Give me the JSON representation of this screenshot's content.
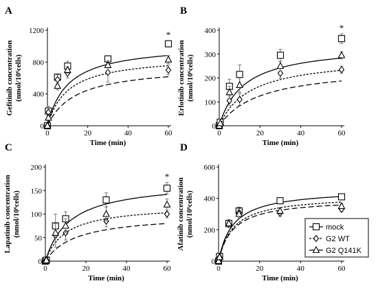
{
  "legend": [
    {
      "label": "mock",
      "marker": "square",
      "dash": "solid"
    },
    {
      "label": "G2 WT",
      "marker": "diamond",
      "dash": "short"
    },
    {
      "label": "G2 Q141K",
      "marker": "triangle",
      "dash": "long"
    }
  ],
  "chart_data": [
    {
      "type": "scatter",
      "panel_label": "A",
      "xlabel": "Time (min)",
      "ylabel": [
        "Gefitinib concentration",
        "(nmol/10⁶cells)"
      ],
      "xlim": [
        0,
        60
      ],
      "ylim": [
        0,
        1200
      ],
      "xticks": [
        0,
        20,
        40,
        60
      ],
      "yticks": [
        0,
        400,
        800,
        1200
      ],
      "x": [
        0,
        0.5,
        5,
        10,
        30,
        60
      ],
      "series": [
        {
          "name": "mock",
          "values": [
            0,
            185,
            610,
            750,
            840,
            1030
          ],
          "err": [
            0,
            60,
            40,
            60,
            40,
            40
          ],
          "fit": [
            1030,
            10
          ]
        },
        {
          "name": "G2 WT",
          "values": [
            0,
            170,
            580,
            660,
            670,
            700
          ],
          "err": [
            0,
            60,
            60,
            60,
            120,
            60
          ],
          "fit": [
            880,
            10
          ]
        },
        {
          "name": "G2 Q141K",
          "values": [
            0,
            100,
            500,
            700,
            760,
            830
          ],
          "err": [
            0,
            30,
            50,
            40,
            60,
            50
          ],
          "fit": [
            760,
            14
          ]
        }
      ],
      "annotations": [
        {
          "text": "*",
          "x": 60,
          "y": 1030
        }
      ]
    },
    {
      "type": "scatter",
      "panel_label": "B",
      "xlabel": "Time (min)",
      "ylabel": [
        "Erlotinib concentration",
        "(nmol/10⁶cells)"
      ],
      "xlim": [
        0,
        60
      ],
      "ylim": [
        0,
        400
      ],
      "xticks": [
        0,
        20,
        40,
        60
      ],
      "yticks": [
        0,
        100,
        200,
        300,
        400
      ],
      "x": [
        0,
        0.5,
        5,
        10,
        30,
        60
      ],
      "series": [
        {
          "name": "mock",
          "values": [
            0,
            15,
            165,
            215,
            295,
            365
          ],
          "err": [
            0,
            10,
            30,
            40,
            25,
            20
          ],
          "fit": [
            340,
            12
          ]
        },
        {
          "name": "G2 WT",
          "values": [
            0,
            5,
            105,
            110,
            220,
            235
          ],
          "err": [
            0,
            5,
            20,
            25,
            20,
            15
          ],
          "fit": [
            290,
            15
          ]
        },
        {
          "name": "G2 Q141K",
          "values": [
            0,
            10,
            140,
            170,
            250,
            295
          ],
          "err": [
            0,
            5,
            25,
            30,
            20,
            15
          ],
          "fit": [
            250,
            20
          ]
        }
      ],
      "annotations": [
        {
          "text": "*",
          "x": 60,
          "y": 365
        }
      ]
    },
    {
      "type": "scatter",
      "panel_label": "C",
      "xlabel": "Time (min)",
      "ylabel": [
        "Lapatinib concentration",
        "(nmol/10⁶cells)"
      ],
      "xlim": [
        0,
        60
      ],
      "ylim": [
        0,
        200
      ],
      "xticks": [
        0,
        20,
        40,
        60
      ],
      "yticks": [
        0,
        50,
        100,
        150,
        200
      ],
      "x": [
        0,
        0.5,
        5,
        10,
        30,
        60
      ],
      "series": [
        {
          "name": "mock",
          "values": [
            0,
            2,
            75,
            90,
            130,
            155
          ],
          "err": [
            0,
            2,
            25,
            15,
            15,
            12
          ],
          "fit": [
            170,
            12
          ]
        },
        {
          "name": "G2 WT",
          "values": [
            0,
            2,
            55,
            60,
            85,
            100
          ],
          "err": [
            0,
            2,
            25,
            15,
            12,
            8
          ],
          "fit": [
            120,
            10
          ]
        },
        {
          "name": "G2 Q141K",
          "values": [
            0,
            2,
            60,
            75,
            100,
            120
          ],
          "err": [
            0,
            2,
            20,
            15,
            15,
            12
          ],
          "fit": [
            100,
            15
          ]
        }
      ],
      "annotations": [
        {
          "text": "*",
          "x": 60,
          "y": 155
        }
      ]
    },
    {
      "type": "scatter",
      "panel_label": "D",
      "xlabel": "Time (min)",
      "ylabel": [
        "Afatinib concentration",
        "(nmol/10⁶cells)"
      ],
      "xlim": [
        0,
        60
      ],
      "ylim": [
        0,
        600
      ],
      "xticks": [
        0,
        20,
        40,
        60
      ],
      "yticks": [
        0,
        200,
        400,
        600
      ],
      "x": [
        0,
        0.5,
        5,
        10,
        30,
        60
      ],
      "series": [
        {
          "name": "mock",
          "values": [
            0,
            30,
            240,
            320,
            385,
            410
          ],
          "err": [
            0,
            20,
            25,
            25,
            20,
            15
          ],
          "fit": [
            460,
            7
          ]
        },
        {
          "name": "G2 WT",
          "values": [
            0,
            25,
            235,
            310,
            305,
            330
          ],
          "err": [
            0,
            15,
            20,
            25,
            20,
            15
          ],
          "fit": [
            420,
            7
          ]
        },
        {
          "name": "G2 Q141K",
          "values": [
            0,
            25,
            240,
            300,
            320,
            350
          ],
          "err": [
            0,
            15,
            20,
            25,
            20,
            15
          ],
          "fit": [
            400,
            7
          ]
        }
      ],
      "annotations": []
    }
  ]
}
